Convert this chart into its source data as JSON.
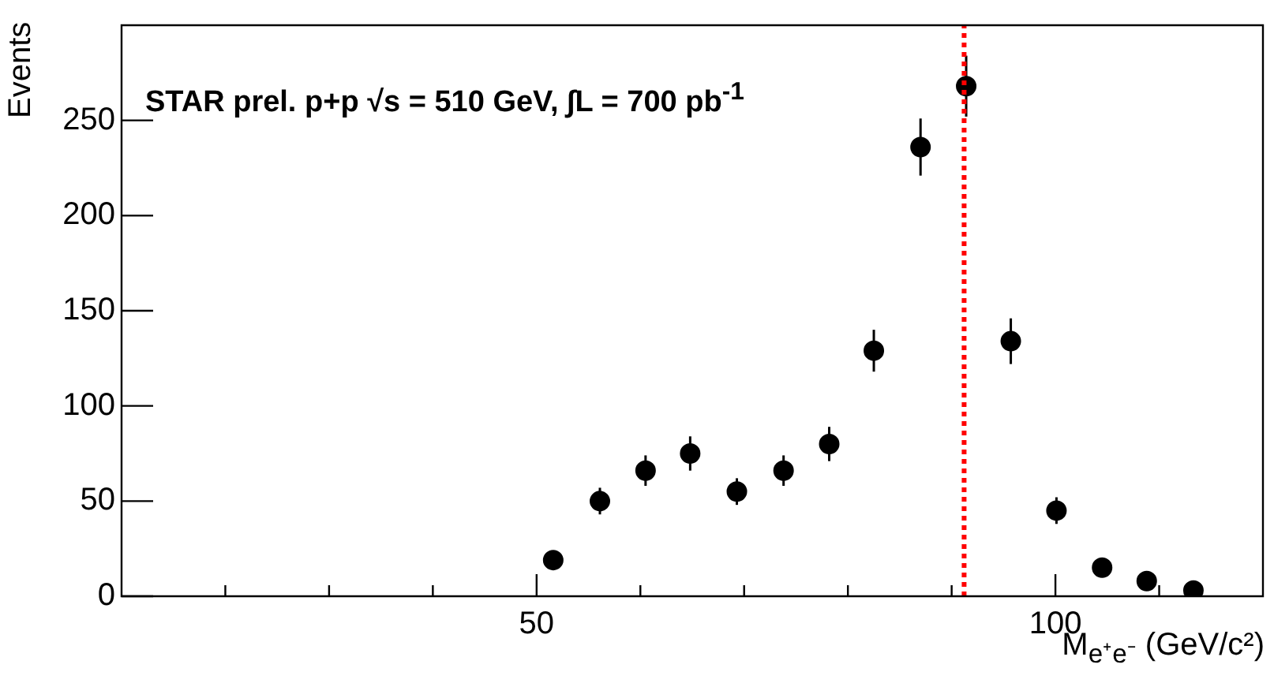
{
  "chart_data": {
    "type": "scatter",
    "xlabel": "M$_{e⁺e⁻}$ (GeV/c²)",
    "ylabel": "Events",
    "annotations": [
      "STAR prel. p+p √s = 510 GeV,  ∫L = 700 pb$^{-1}$"
    ],
    "x": [
      51.6,
      56.1,
      60.5,
      64.8,
      69.3,
      73.8,
      78.2,
      82.5,
      87.0,
      91.4,
      95.7,
      100.1,
      104.5,
      108.8,
      113.3
    ],
    "series": [
      {
        "color": "#000000",
        "values": [
          19,
          50,
          66,
          75,
          55,
          66,
          80,
          129,
          236,
          268,
          134,
          45,
          15,
          8,
          3
        ],
        "errors": [
          4,
          7,
          8,
          9,
          7,
          8,
          9,
          11,
          15,
          16,
          12,
          7,
          4,
          3,
          2
        ]
      }
    ],
    "marker": "circle",
    "xlim": [
      10,
      120
    ],
    "xticks": [
      {
        "value": 20,
        "label": null
      },
      {
        "value": 30,
        "label": null
      },
      {
        "value": 40,
        "label": null
      },
      50,
      {
        "value": 60,
        "label": null
      },
      {
        "value": 70,
        "label": null
      },
      {
        "value": 80,
        "label": null
      },
      {
        "value": 90,
        "label": null
      },
      100,
      {
        "value": 110,
        "label": null
      }
    ],
    "ylim": [
      0,
      300
    ],
    "yticks": [
      0,
      50,
      100,
      150,
      200,
      250
    ],
    "ref_lines": [
      {
        "axis": "x",
        "value": 91.2,
        "color": "#ff0000",
        "line_style": "dotted"
      }
    ],
    "grid": false,
    "legend": false
  }
}
